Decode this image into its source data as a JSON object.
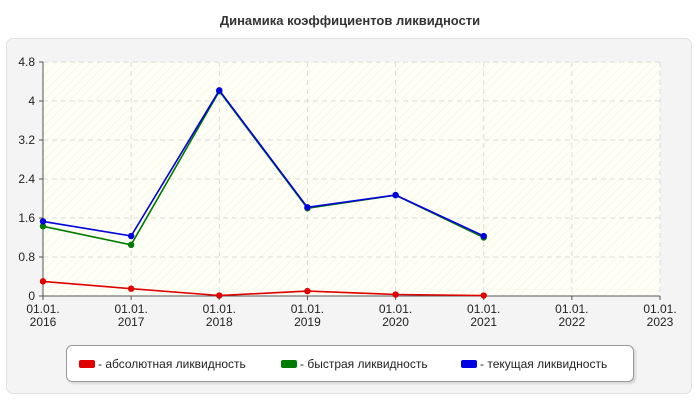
{
  "title": "Динамика коэффициентов ликвидности",
  "colors": {
    "absolute": "#e00000",
    "quick": "#007a00",
    "current": "#0000e0"
  },
  "chart_data": {
    "type": "line",
    "categories": [
      "01.01. 2016",
      "01.01. 2017",
      "01.01. 2018",
      "01.01. 2019",
      "01.01. 2020",
      "01.01. 2021",
      "01.01. 2022",
      "01.01. 2023"
    ],
    "x_tick_lines": [
      [
        "01.01.",
        "2016"
      ],
      [
        "01.01.",
        "2017"
      ],
      [
        "01.01.",
        "2018"
      ],
      [
        "01.01.",
        "2019"
      ],
      [
        "01.01.",
        "2020"
      ],
      [
        "01.01.",
        "2021"
      ],
      [
        "01.01.",
        "2022"
      ],
      [
        "01.01.",
        "2023"
      ]
    ],
    "y_ticks": [
      "0",
      "0.8",
      "1.6",
      "2.4",
      "3.2",
      "4",
      "4.8"
    ],
    "ylim": [
      0,
      4.8
    ],
    "grid": true,
    "legend_position": "bottom",
    "series": [
      {
        "name": "- абсолютная ликвидность",
        "color_key": "absolute",
        "values": [
          0.3,
          0.15,
          0.01,
          0.1,
          0.03,
          0.01,
          null,
          null
        ]
      },
      {
        "name": "- быстрая ликвидность",
        "color_key": "quick",
        "values": [
          1.43,
          1.05,
          4.2,
          1.8,
          2.07,
          1.2,
          null,
          null
        ]
      },
      {
        "name": "- текущая ликвидность",
        "color_key": "current",
        "values": [
          1.53,
          1.23,
          4.22,
          1.82,
          2.07,
          1.23,
          null,
          null
        ]
      }
    ]
  }
}
